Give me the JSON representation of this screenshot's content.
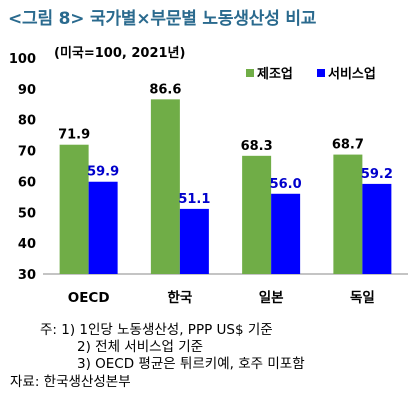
{
  "title": "<그림 8> 국가별×부문별 노동생산성 비교",
  "unit_label": "(미국=100, 2021년)",
  "chart_data": {
    "type": "bar",
    "categories": [
      "OECD",
      "한국",
      "일본",
      "독일"
    ],
    "series": [
      {
        "name": "제조업",
        "color": "#70ad47",
        "values": [
          71.9,
          86.6,
          68.3,
          68.7
        ]
      },
      {
        "name": "서비스업",
        "color": "#0000ff",
        "values": [
          59.9,
          51.1,
          56.0,
          59.2
        ]
      }
    ],
    "value_labels": [
      [
        "71.9",
        "86.6",
        "68.3",
        "68.7"
      ],
      [
        "59.9",
        "51.1",
        "56.0",
        "59.2"
      ]
    ],
    "ylim": [
      30,
      100
    ],
    "yticks": [
      "30",
      "40",
      "50",
      "60",
      "70",
      "80",
      "90",
      "100"
    ],
    "xlabel": "",
    "ylabel": "",
    "grid": false,
    "legend": "top-right"
  },
  "notes": [
    "주: 1) 1인당 노동생산성, PPP US$ 기준",
    "2) 전체 서비스업 기준",
    "3) OECD 평균은 튀르키예, 호주 미포함",
    "자료: 한국생산성본부"
  ]
}
